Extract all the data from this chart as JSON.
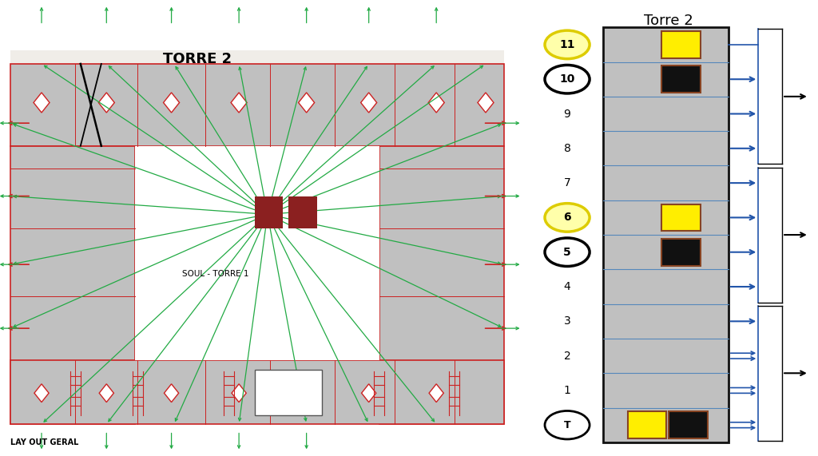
{
  "title_left": "TORRE 2",
  "title_right": "Torre 2",
  "label_soul": "SOUL - TORRE 1",
  "label_layout": "LAY OUT GERAL",
  "floors": [
    "T",
    "1",
    "2",
    "3",
    "4",
    "5",
    "6",
    "7",
    "8",
    "9",
    "10",
    "11"
  ],
  "circled_yellow": [
    "11",
    "6"
  ],
  "circled_black": [
    "10",
    "5"
  ],
  "circled_white": [
    "T"
  ],
  "building_color": "#c0c0c0",
  "building_border": "#111111",
  "floor_line_color": "#5588bb",
  "yellow_color": "#ffee00",
  "black_color": "#111111",
  "red_border_color": "#884422",
  "blue_arrow_color": "#2255aa",
  "black_arrow_color": "#111111",
  "background_color": "#ffffff",
  "bar_color": "#c0c0c0",
  "red_color": "#cc2222",
  "green_color": "#22aa44",
  "darkred_color": "#8B2020"
}
